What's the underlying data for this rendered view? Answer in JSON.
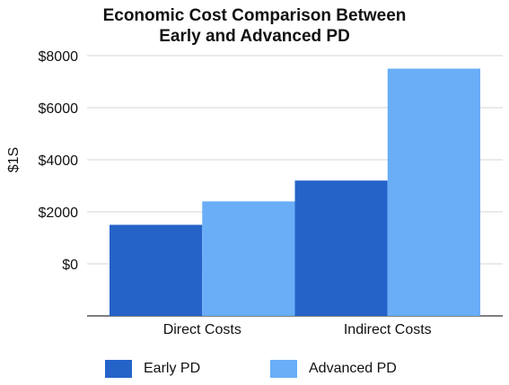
{
  "chart_data": {
    "type": "bar",
    "title": "Economic Cost Comparison Between Early and Advanced PD",
    "title_lines": [
      "Economic Cost Comparison Between",
      "Early and Advanced PD"
    ],
    "ylabel": "$1S",
    "xlabel": "",
    "categories": [
      "Direct Costs",
      "Indirect Costs"
    ],
    "series": [
      {
        "name": "Early PD",
        "values": [
          1500,
          3200
        ],
        "color": "#2563c9"
      },
      {
        "name": "Advanced PD",
        "values": [
          2400,
          7500
        ],
        "color": "#69aef7"
      }
    ],
    "ylim": [
      -2000,
      8000
    ],
    "yticks": [
      0,
      2000,
      4000,
      6000,
      8000
    ],
    "ytick_labels": [
      "$0",
      "$2000",
      "$4000",
      "$6000",
      "$8000"
    ],
    "grid": true,
    "legend_position": "bottom"
  }
}
